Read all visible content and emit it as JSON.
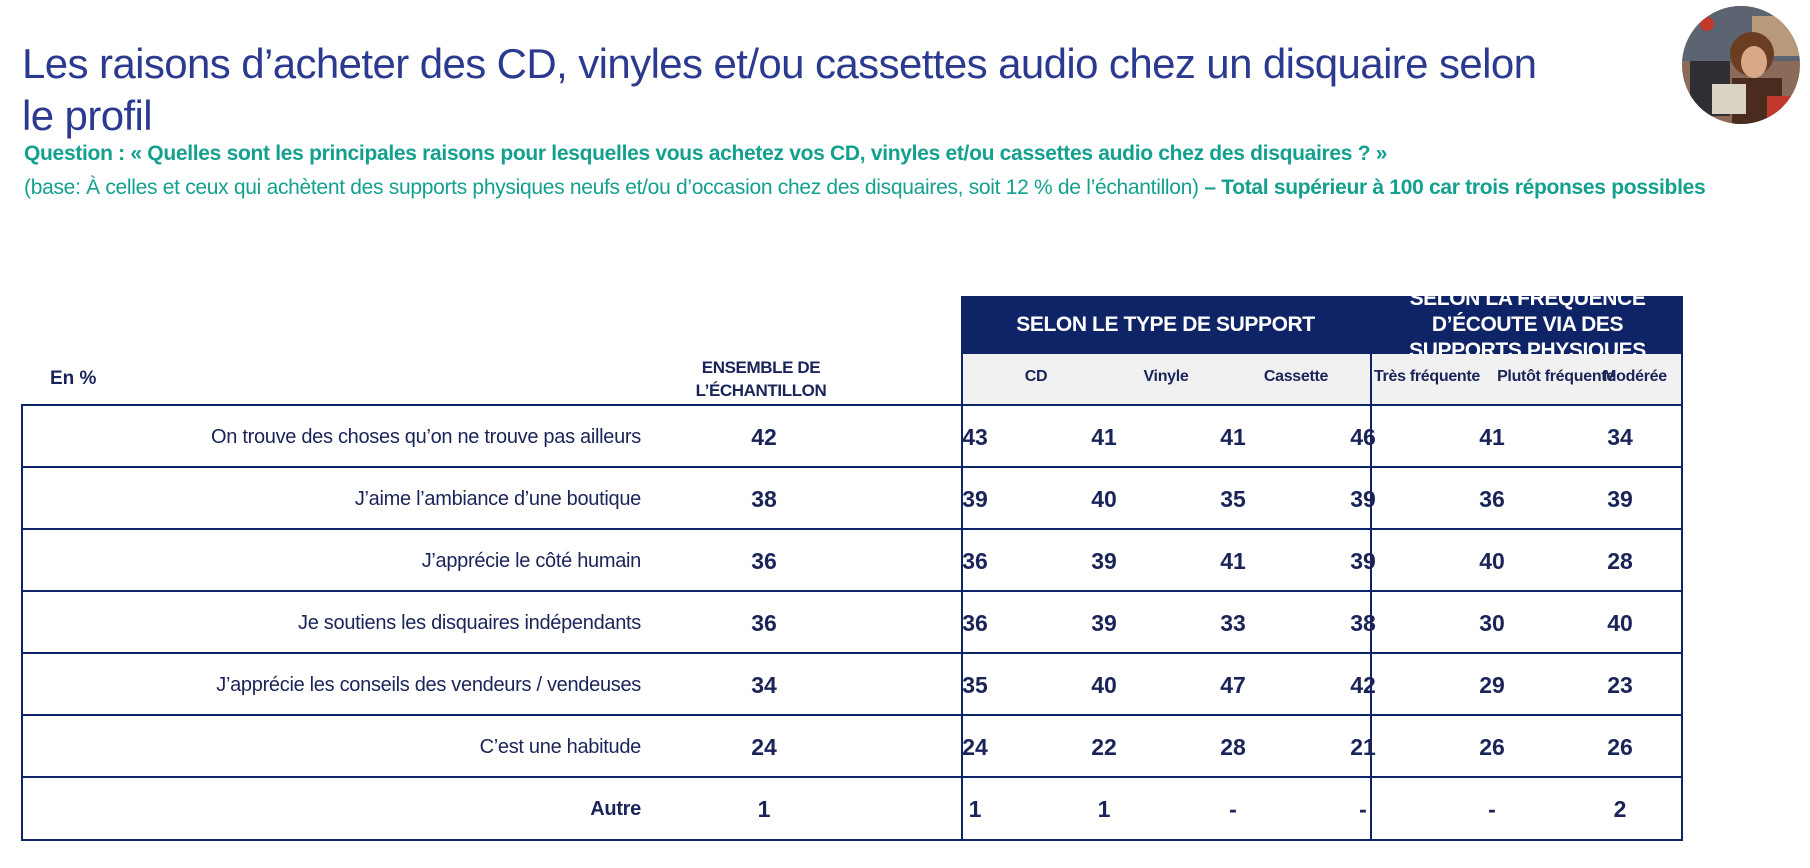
{
  "title": "Les raisons d’acheter des CD, vinyles et/ou cassettes audio chez un disquaire selon le profil",
  "question": "Question : « Quelles sont les principales raisons pour lesquelles vous achetez vos CD, vinyles et/ou cassettes audio chez des disquaires ? »",
  "base_text": "(base: À celles et ceux qui achètent des supports physiques neufs et/ou d’occasion chez des disquaires, soit 12 % de l’échantillon)",
  "base_note": "– Total supérieur à 100 car trois réponses possibles",
  "avatar_icon": "person-with-record-photo",
  "table": {
    "corner_label": "En %",
    "total_header": "ENSEMBLE DE L’ÉCHANTILLON",
    "group_support": "SELON LE TYPE DE SUPPORT",
    "group_frequence": "SELON LA FRÉQUENCE D’ÉCOUTE VIA DES SUPPORTS PHYSIQUES",
    "columns": [
      "CD",
      "Vinyle",
      "Cassette",
      "Très fréquente",
      "Plutôt fréquente",
      "Modérée"
    ],
    "rows": [
      {
        "label": "On trouve des choses qu’on ne trouve pas ailleurs",
        "values": [
          "42",
          "43",
          "41",
          "41",
          "46",
          "41",
          "34"
        ]
      },
      {
        "label": "J’aime l’ambiance d’une boutique",
        "values": [
          "38",
          "39",
          "40",
          "35",
          "39",
          "36",
          "39"
        ]
      },
      {
        "label": "J’apprécie le côté humain",
        "values": [
          "36",
          "36",
          "39",
          "41",
          "39",
          "40",
          "28"
        ]
      },
      {
        "label": "Je soutiens les disquaires indépendants",
        "values": [
          "36",
          "36",
          "39",
          "33",
          "38",
          "30",
          "40"
        ]
      },
      {
        "label": "J’apprécie les conseils des vendeurs / vendeuses",
        "values": [
          "34",
          "35",
          "40",
          "47",
          "42",
          "29",
          "23"
        ]
      },
      {
        "label": "C’est une habitude",
        "values": [
          "24",
          "24",
          "22",
          "28",
          "21",
          "26",
          "26"
        ]
      },
      {
        "label": "Autre",
        "values": [
          "1",
          "1",
          "1",
          "-",
          "-",
          "-",
          "2"
        ]
      }
    ]
  },
  "colors": {
    "title": "#2b3a8f",
    "teal": "#14a08e",
    "navy": "#0f2466"
  }
}
